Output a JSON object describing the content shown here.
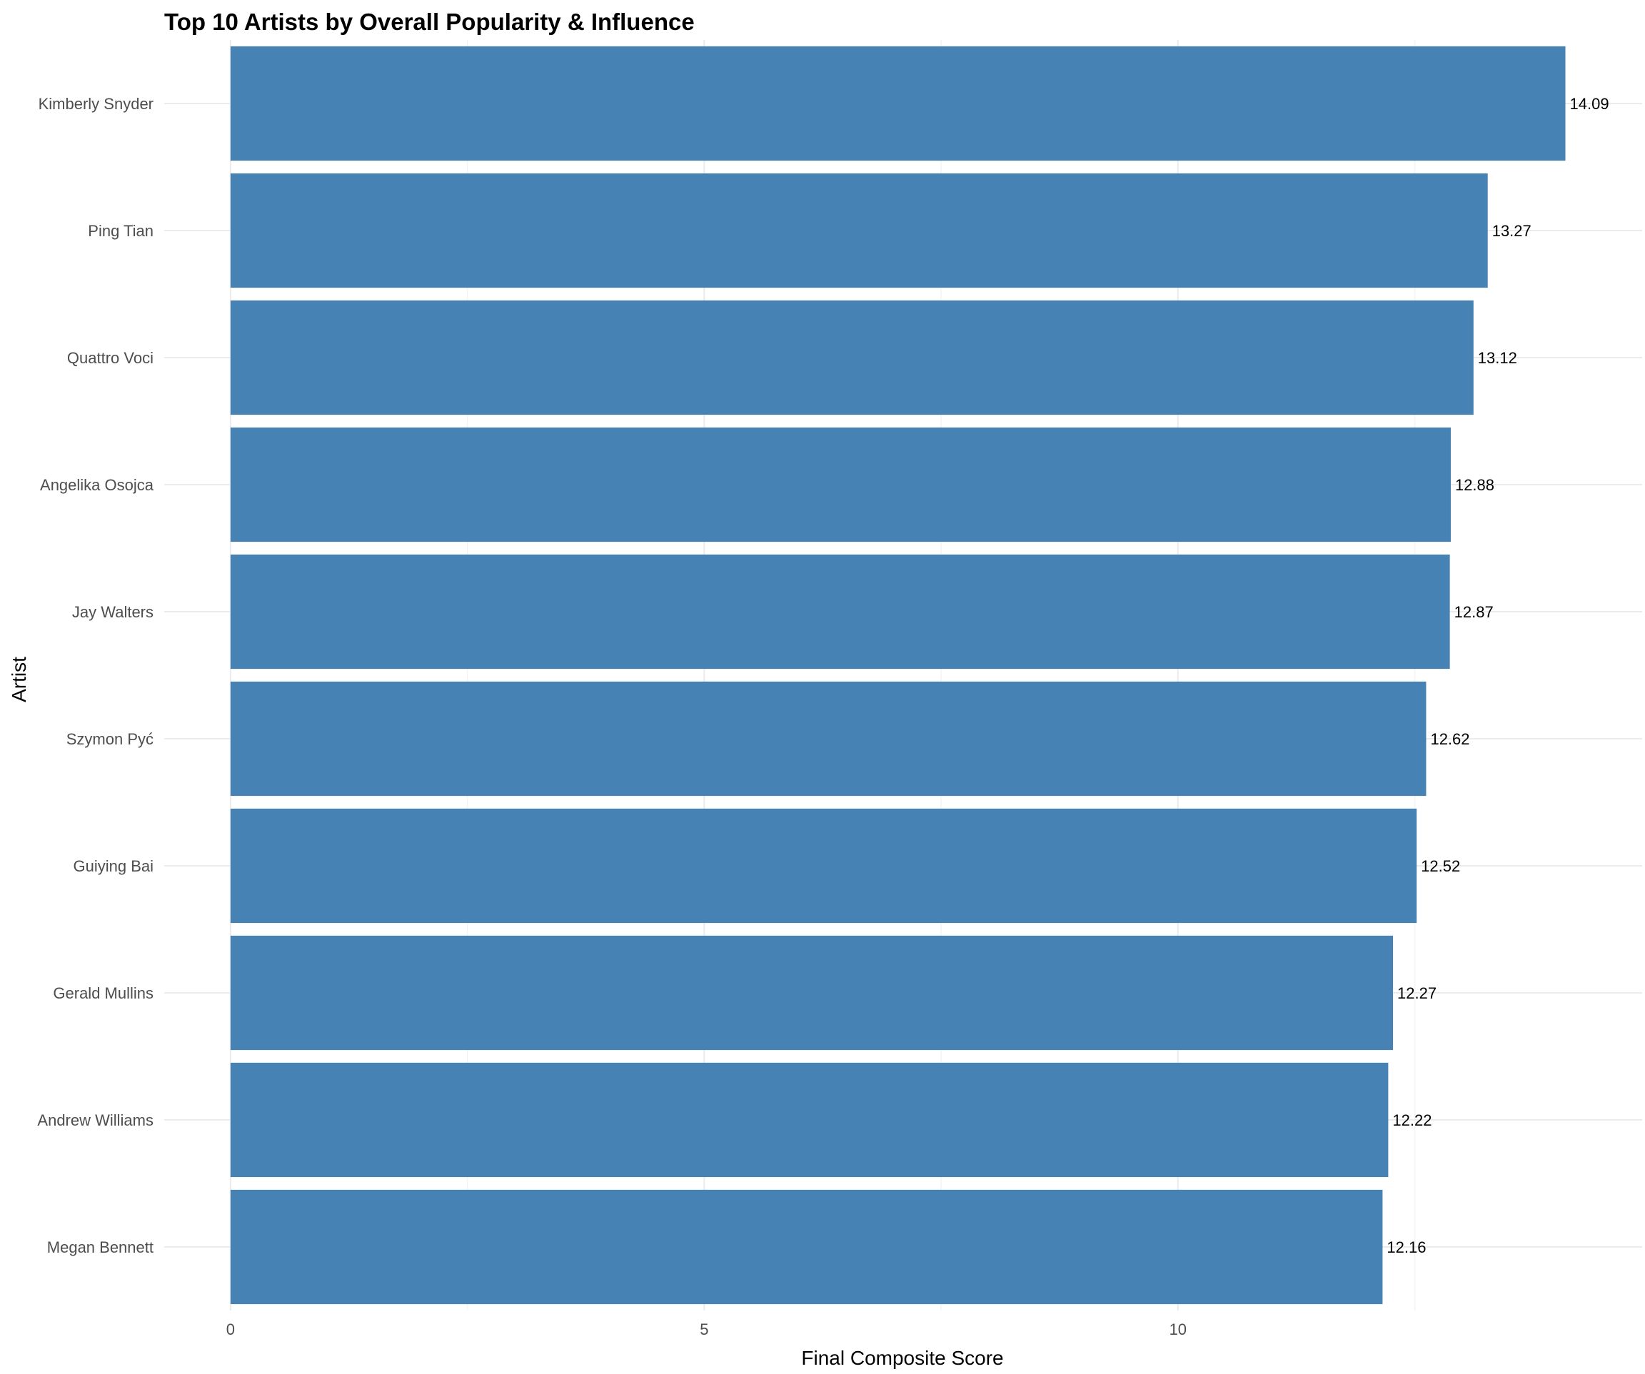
{
  "chart_data": {
    "type": "bar",
    "orientation": "horizontal",
    "title": "Top 10 Artists by Overall Popularity & Influence",
    "xlabel": "Final Composite Score",
    "ylabel": "Artist",
    "categories": [
      "Kimberly Snyder",
      "Ping Tian",
      "Quattro Voci",
      "Angelika Osojca",
      "Jay Walters",
      "Szymon Pyć",
      "Guiying Bai",
      "Gerald Mullins",
      "Andrew Williams",
      "Megan Bennett"
    ],
    "values": [
      14.09,
      13.27,
      13.12,
      12.88,
      12.87,
      12.62,
      12.52,
      12.27,
      12.22,
      12.16
    ],
    "value_labels": [
      "14.09",
      "13.27",
      "13.12",
      "12.88",
      "12.87",
      "12.62",
      "12.52",
      "12.27",
      "12.22",
      "12.16"
    ],
    "x_ticks": [
      0,
      5,
      10
    ],
    "x_tick_labels": [
      "0",
      "5",
      "10"
    ],
    "xlim": [
      -0.7,
      14.9
    ],
    "grid": true,
    "legend": "none",
    "colors": {
      "bar": "#4682B4",
      "grid_major": "#ebebeb",
      "grid_minor": "#f4f4f4",
      "text": "#000000",
      "tick_text": "#4d4d4d"
    }
  }
}
